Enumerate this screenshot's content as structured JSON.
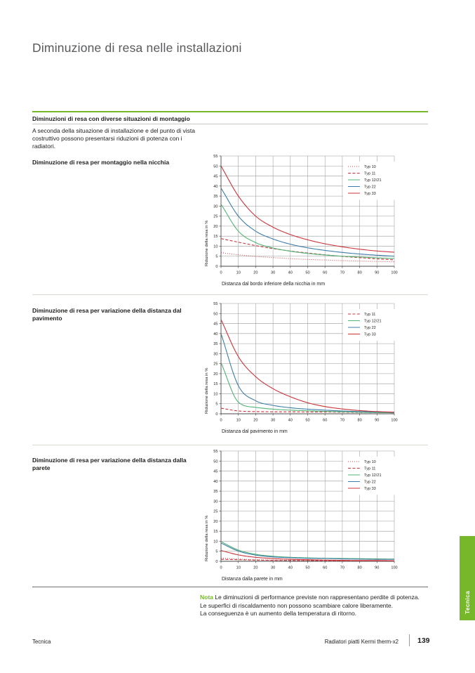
{
  "page": {
    "title": "Diminuzione di resa nelle installazioni",
    "section_header": "Diminuzioni di resa con diverse situazioni di montaggio",
    "intro": "A seconda della situazione di installazione e del punto di vista costruttivo possono presentarsi riduzioni di potenza con i radiatori.",
    "note_label": "Nota",
    "note_lines": [
      "Le diminuzioni di performance previste non rappresentano perdite di potenza.",
      "Le superfici di riscaldamento non possono scambiare calore liberamente.",
      "La conseguenza è un aumento della temperatura di ritorno."
    ],
    "footer_left": "Tecnica",
    "footer_product": "Radiatori piatti Kermi therm-x2",
    "page_number": "139",
    "side_tab_label": "Tecnica"
  },
  "colors": {
    "accent_green": "#76b82a",
    "series_red": "#c9353b",
    "series_blue": "#3d7ea8",
    "series_green": "#52b376",
    "grid": "#9b9b9b",
    "axis": "#4a4a4a",
    "text": "#1d1d1b"
  },
  "chart_data": [
    {
      "type": "line",
      "caption": "Diminuzione di resa per montaggio nella nicchia",
      "xlabel": "Distanza dal bordo inferiore della nicchia in mm",
      "ylabel": "Riduzione della resa in %",
      "xlim": [
        0,
        100
      ],
      "ylim": [
        0,
        55
      ],
      "xtick_step": 10,
      "ytick_step": 5,
      "grid": true,
      "legend_position": "top-right",
      "x": [
        0,
        10,
        20,
        30,
        40,
        50,
        60,
        70,
        80,
        90,
        100
      ],
      "series": [
        {
          "name": "Typ 10",
          "color": "#c9353b",
          "style": "dotted",
          "values": [
            6.8,
            5.7,
            4.9,
            4.3,
            3.8,
            3.4,
            3.1,
            2.8,
            2.6,
            2.4,
            2.2
          ]
        },
        {
          "name": "Typ 11",
          "color": "#c9353b",
          "style": "dashed",
          "values": [
            13.8,
            12.0,
            10.3,
            8.8,
            7.6,
            6.6,
            5.7,
            4.9,
            4.3,
            3.7,
            3.2
          ]
        },
        {
          "name": "Typ 12/21",
          "color": "#52b376",
          "style": "solid",
          "values": [
            31.0,
            17.5,
            11.8,
            9.1,
            7.5,
            6.4,
            5.6,
            5.0,
            4.6,
            4.2,
            3.9
          ]
        },
        {
          "name": "Typ 22",
          "color": "#3d7ea8",
          "style": "solid",
          "values": [
            39.0,
            25.0,
            17.5,
            13.6,
            11.0,
            9.2,
            7.9,
            6.9,
            6.1,
            5.5,
            5.0
          ]
        },
        {
          "name": "Typ 33",
          "color": "#c9353b",
          "style": "solid",
          "values": [
            50.0,
            35.0,
            25.0,
            19.5,
            15.8,
            13.2,
            11.2,
            9.7,
            8.5,
            7.6,
            7.0
          ]
        }
      ]
    },
    {
      "type": "line",
      "caption": "Diminuzione di resa per variazione della distanza dal pavimento",
      "xlabel": "Distanza dal pavimento in mm",
      "ylabel": "Riduzione della resa in %",
      "xlim": [
        0,
        100
      ],
      "ylim": [
        0,
        55
      ],
      "xtick_step": 10,
      "ytick_step": 5,
      "grid": true,
      "legend_position": "top-right",
      "x": [
        0,
        10,
        20,
        30,
        40,
        50,
        60,
        70,
        80,
        90,
        100
      ],
      "series": [
        {
          "name": "Typ 11",
          "color": "#c9353b",
          "style": "dashed",
          "values": [
            2.8,
            1.4,
            1.1,
            1.0,
            1.0,
            0.9,
            0.9,
            0.8,
            0.7,
            0.6,
            0.5
          ]
        },
        {
          "name": "Typ 12/21",
          "color": "#52b376",
          "style": "solid",
          "values": [
            25.5,
            5.8,
            3.2,
            2.3,
            1.8,
            1.5,
            1.2,
            1.0,
            0.8,
            0.6,
            0.5
          ]
        },
        {
          "name": "Typ 22",
          "color": "#3d7ea8",
          "style": "solid",
          "values": [
            40.0,
            14.0,
            6.5,
            4.2,
            3.0,
            2.3,
            1.8,
            1.4,
            1.1,
            0.9,
            0.7
          ]
        },
        {
          "name": "Typ 33",
          "color": "#c9353b",
          "style": "solid",
          "values": [
            47.0,
            28.5,
            18.5,
            12.5,
            8.5,
            5.5,
            3.6,
            2.4,
            1.6,
            1.1,
            0.8
          ]
        }
      ]
    },
    {
      "type": "line",
      "caption": "Diminuzione di resa per variazione della distanza dalla parete",
      "xlabel": "Distanza dalla parete in mm",
      "ylabel": "Riduzione della resa in %",
      "xlim": [
        0,
        100
      ],
      "ylim": [
        0,
        55
      ],
      "xtick_step": 10,
      "ytick_step": 5,
      "grid": true,
      "legend_position": "top-right",
      "x": [
        0,
        10,
        20,
        30,
        40,
        50,
        60,
        70,
        80,
        90,
        100
      ],
      "series": [
        {
          "name": "Typ 10",
          "color": "#c9353b",
          "style": "dotted",
          "values": [
            1.6,
            1.1,
            0.8,
            0.6,
            0.5,
            0.4,
            0.4,
            0.3,
            0.3,
            0.2,
            0.2
          ]
        },
        {
          "name": "Typ 11",
          "color": "#c9353b",
          "style": "dashed",
          "values": [
            1.0,
            0.8,
            0.6,
            0.5,
            0.4,
            0.4,
            0.3,
            0.3,
            0.2,
            0.2,
            0.2
          ]
        },
        {
          "name": "Typ 12/21",
          "color": "#52b376",
          "style": "solid",
          "values": [
            9.8,
            5.6,
            3.5,
            2.5,
            2.0,
            1.7,
            1.5,
            1.4,
            1.3,
            1.2,
            1.1
          ]
        },
        {
          "name": "Typ 22",
          "color": "#3d7ea8",
          "style": "solid",
          "values": [
            9.1,
            5.1,
            3.1,
            2.2,
            1.8,
            1.5,
            1.4,
            1.2,
            1.1,
            1.0,
            1.0
          ]
        },
        {
          "name": "Typ 33",
          "color": "#c9353b",
          "style": "solid",
          "values": [
            5.4,
            3.2,
            2.0,
            1.4,
            1.0,
            0.8,
            0.6,
            0.5,
            0.4,
            0.4,
            0.3
          ]
        }
      ]
    }
  ]
}
